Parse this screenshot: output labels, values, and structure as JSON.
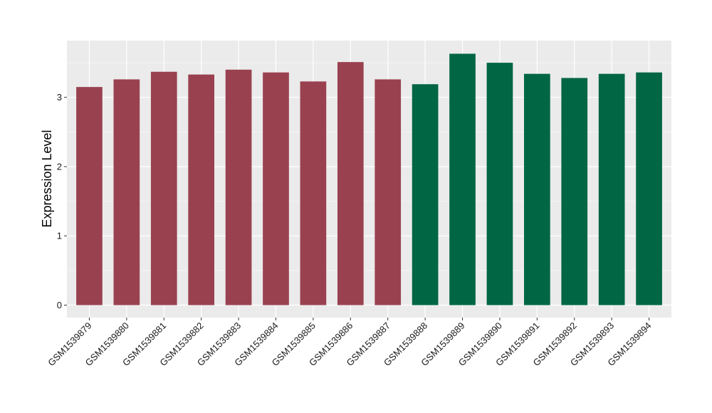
{
  "chart_data": {
    "type": "bar",
    "title": "",
    "xlabel": "",
    "ylabel": "Expression Level",
    "ylim": [
      -0.18,
      3.82
    ],
    "yticks": [
      0,
      1,
      2,
      3
    ],
    "grid": true,
    "legend": "none",
    "categories": [
      "GSM1539879",
      "GSM1539880",
      "GSM1539881",
      "GSM1539882",
      "GSM1539883",
      "GSM1539884",
      "GSM1539885",
      "GSM1539886",
      "GSM1539887",
      "GSM1539888",
      "GSM1539889",
      "GSM1539890",
      "GSM1539891",
      "GSM1539892",
      "GSM1539893",
      "GSM1539894"
    ],
    "values": [
      3.15,
      3.26,
      3.37,
      3.33,
      3.4,
      3.36,
      3.23,
      3.51,
      3.26,
      3.19,
      3.63,
      3.5,
      3.34,
      3.28,
      3.34,
      3.36
    ],
    "bar_colors": [
      "#9a4150",
      "#9a4150",
      "#9a4150",
      "#9a4150",
      "#9a4150",
      "#9a4150",
      "#9a4150",
      "#9a4150",
      "#9a4150",
      "#006644",
      "#006644",
      "#006644",
      "#006644",
      "#006644",
      "#006644",
      "#006644"
    ],
    "panel_background": "#ebebeb",
    "grid_color": "#ffffff"
  }
}
